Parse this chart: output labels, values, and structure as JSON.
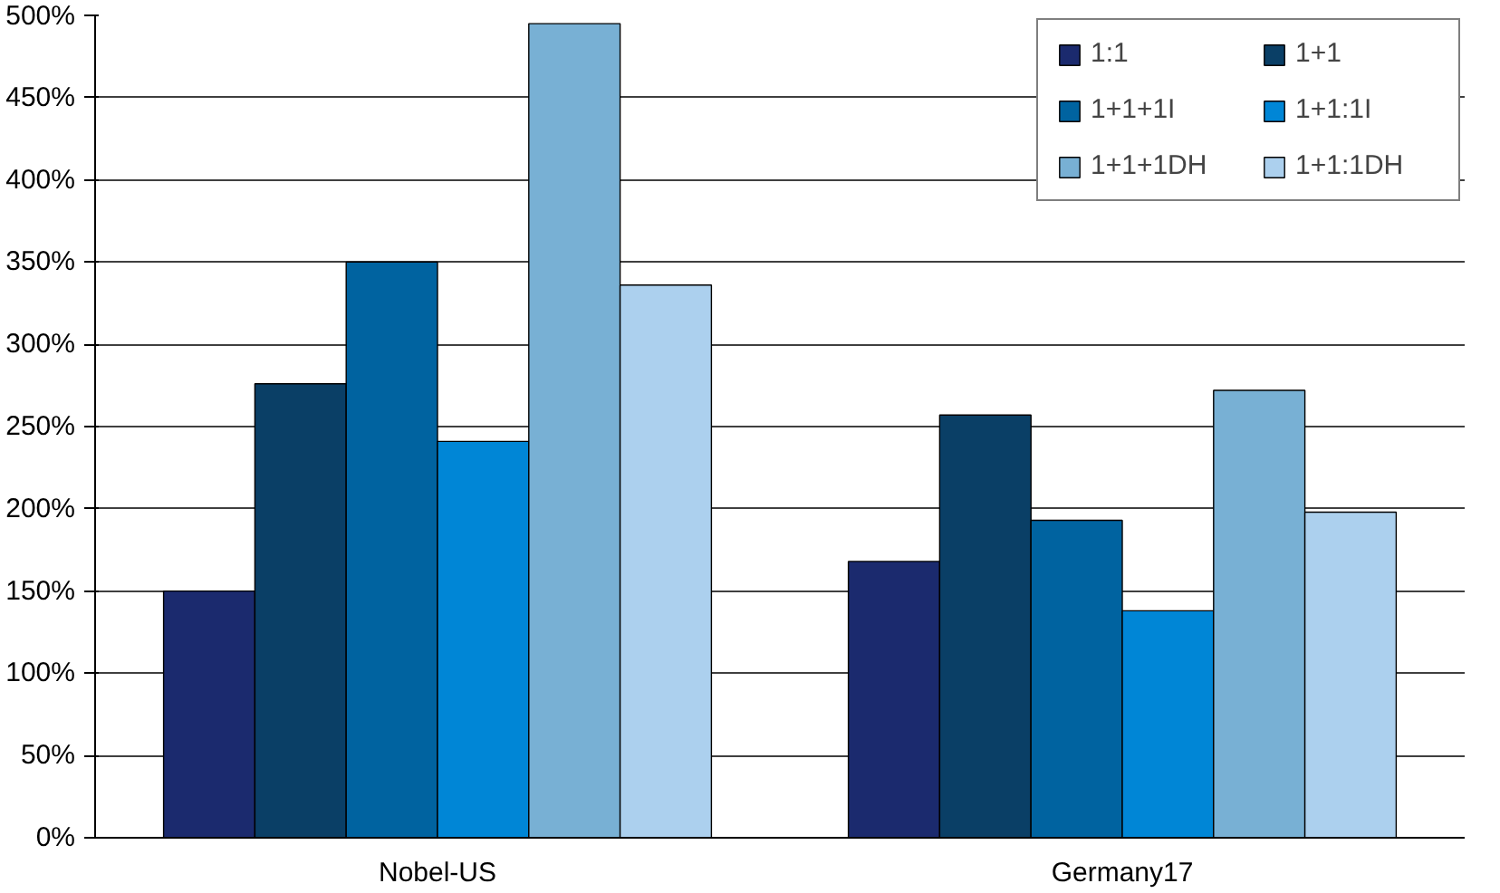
{
  "chart_data": {
    "type": "bar",
    "categories": [
      "Nobel-US",
      "Germany17"
    ],
    "series": [
      {
        "name": "1:1",
        "color": "#1b2a6e",
        "values": [
          150,
          168
        ]
      },
      {
        "name": "1+1",
        "color": "#0a3f66",
        "values": [
          276,
          257
        ]
      },
      {
        "name": "1+1+1I",
        "color": "#0063a0",
        "values": [
          350,
          193
        ]
      },
      {
        "name": "1+1:1I",
        "color": "#0086d6",
        "values": [
          241,
          138
        ]
      },
      {
        "name": "1+1+1DH",
        "color": "#78b0d4",
        "values": [
          495,
          272
        ]
      },
      {
        "name": "1+1:1DH",
        "color": "#acd0ee",
        "values": [
          336,
          198
        ]
      }
    ],
    "ylim": [
      0,
      500
    ],
    "yticks": [
      {
        "value": 0,
        "label": "0%"
      },
      {
        "value": 50,
        "label": "50%"
      },
      {
        "value": 100,
        "label": "100%"
      },
      {
        "value": 150,
        "label": "150%"
      },
      {
        "value": 200,
        "label": "200%"
      },
      {
        "value": 250,
        "label": "250%"
      },
      {
        "value": 300,
        "label": "300%"
      },
      {
        "value": 350,
        "label": "350%"
      },
      {
        "value": 400,
        "label": "400%"
      },
      {
        "value": 450,
        "label": "450%"
      },
      {
        "value": 500,
        "label": "500%"
      }
    ],
    "grid": "y",
    "legend": "top right"
  }
}
